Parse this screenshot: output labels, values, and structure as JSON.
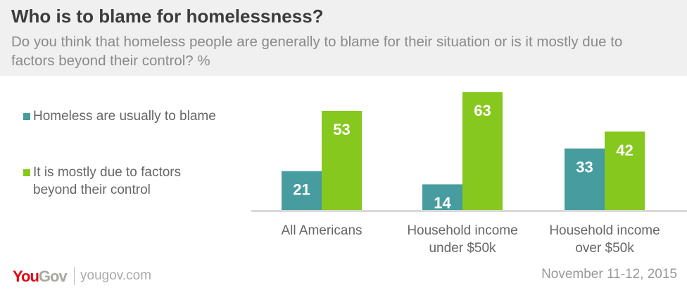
{
  "chart_data": {
    "type": "bar",
    "title": "Who is to blame for homelessness?",
    "subtitle": "Do you think that homeless people are generally to blame for their situation or is it mostly due to factors beyond their control? %",
    "categories": [
      "All Americans",
      "Household income under $50k",
      "Household income over $50k"
    ],
    "category_lines": [
      [
        "All Americans"
      ],
      [
        "Household income",
        "under $50k"
      ],
      [
        "Household income",
        "over $50k"
      ]
    ],
    "series": [
      {
        "name": "Homeless are usually to blame",
        "name_lines": [
          "Homeless are usually to blame"
        ],
        "color": "#469c9e",
        "values": [
          21,
          14,
          33
        ]
      },
      {
        "name": "It is mostly due to factors beyond their control",
        "name_lines": [
          "It is mostly due to factors",
          "beyond their control"
        ],
        "color": "#86c81d",
        "values": [
          53,
          63,
          42
        ]
      }
    ],
    "ylim": [
      0,
      63
    ],
    "legend": "left",
    "grid": false
  },
  "footer": {
    "brand_you": "You",
    "brand_gov": "Gov",
    "url": "yougov.com",
    "date": "November 11-12, 2015"
  }
}
